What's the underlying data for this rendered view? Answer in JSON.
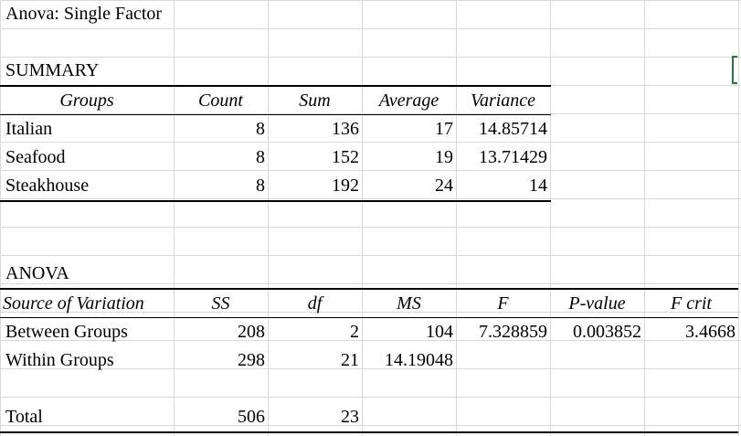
{
  "title": "Anova: Single Factor",
  "summary": {
    "heading": "SUMMARY",
    "headers": [
      "Groups",
      "Count",
      "Sum",
      "Average",
      "Variance"
    ],
    "rows": [
      [
        "Italian",
        "8",
        "136",
        "17",
        "14.85714"
      ],
      [
        "Seafood",
        "8",
        "152",
        "19",
        "13.71429"
      ],
      [
        "Steakhouse",
        "8",
        "192",
        "24",
        "14"
      ]
    ]
  },
  "anova": {
    "heading": "ANOVA",
    "headers": [
      "Source of Variation",
      "SS",
      "df",
      "MS",
      "F",
      "P-value",
      "F crit"
    ],
    "rows": [
      [
        "Between Groups",
        "208",
        "2",
        "104",
        "7.328859",
        "0.003852",
        "3.4668"
      ],
      [
        "Within Groups",
        "298",
        "21",
        "14.19048",
        "",
        "",
        ""
      ]
    ],
    "total": [
      "Total",
      "506",
      "23"
    ]
  },
  "colors": {
    "gridline": "#d9d9d9",
    "selection_border": "#1e7b3c"
  }
}
